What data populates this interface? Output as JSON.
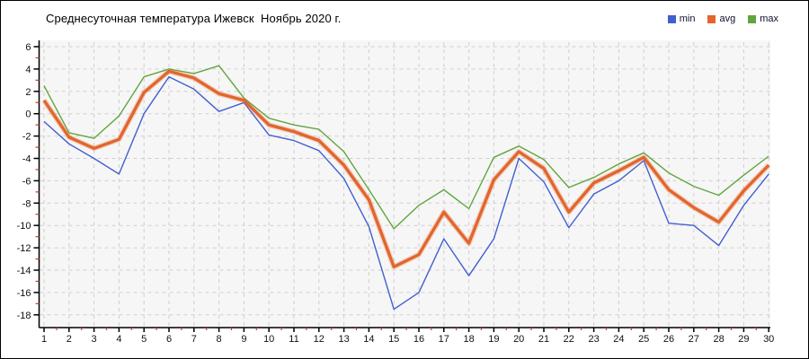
{
  "title": "Среднесуточная температура Ижевск  Ноябрь 2020 г.",
  "legend": {
    "position": "top-right",
    "items": [
      {
        "label": "min",
        "color": "#415fd0"
      },
      {
        "label": "avg",
        "color": "#e2662d"
      },
      {
        "label": "max",
        "color": "#62a53e"
      }
    ]
  },
  "axes": {
    "y_tick_labels": [
      6,
      4,
      2,
      0,
      -2,
      -4,
      -6,
      -8,
      -10,
      -12,
      -14,
      -16,
      -18
    ],
    "y_minor_ticks": [
      5,
      3,
      1,
      -1,
      -3,
      -5,
      -7,
      -9,
      -11,
      -13,
      -15,
      -17
    ],
    "x_tick_labels": [
      1,
      2,
      3,
      4,
      5,
      6,
      7,
      8,
      9,
      10,
      11,
      12,
      13,
      14,
      15,
      16,
      17,
      18,
      19,
      20,
      21,
      22,
      23,
      24,
      25,
      26,
      27,
      28,
      29,
      30
    ],
    "axis_color": "#000000",
    "minor_tick_color": "#d03a2a",
    "grid_color": "#cfcfcf",
    "plot_background": "#f6f6f6"
  },
  "chart_data": {
    "type": "line",
    "title": "Среднесуточная температура Ижевск  Ноябрь 2020 г.",
    "xlabel": "",
    "ylabel": "",
    "ylim": [
      -18,
      6
    ],
    "grid": "dashed",
    "legend_position": "top-right",
    "x": [
      1,
      2,
      3,
      4,
      5,
      6,
      7,
      8,
      9,
      10,
      11,
      12,
      13,
      14,
      15,
      16,
      17,
      18,
      19,
      20,
      21,
      22,
      23,
      24,
      25,
      26,
      27,
      28,
      29,
      30
    ],
    "series": [
      {
        "name": "min",
        "color": "#415fd0",
        "style": "thin",
        "values": [
          -0.7,
          -2.7,
          -4.0,
          -5.4,
          0.0,
          3.3,
          2.2,
          0.2,
          1.0,
          -1.9,
          -2.4,
          -3.3,
          -5.8,
          -10.1,
          -17.5,
          -16.0,
          -11.2,
          -14.5,
          -11.2,
          -4.0,
          -6.1,
          -10.2,
          -7.2,
          -6.0,
          -4.2,
          -9.8,
          -10.0,
          -11.8,
          -8.2,
          -5.4
        ]
      },
      {
        "name": "avg",
        "color": "#e2662d",
        "style": "thick",
        "values": [
          1.2,
          -2.1,
          -3.1,
          -2.3,
          1.9,
          3.8,
          3.2,
          1.8,
          1.2,
          -1.0,
          -1.6,
          -2.4,
          -4.6,
          -7.7,
          -13.7,
          -12.6,
          -8.8,
          -11.6,
          -5.9,
          -3.4,
          -4.9,
          -8.8,
          -6.2,
          -5.1,
          -3.9,
          -6.8,
          -8.4,
          -9.7,
          -6.9,
          -4.6
        ]
      },
      {
        "name": "max",
        "color": "#62a53e",
        "style": "thin",
        "values": [
          2.5,
          -1.7,
          -2.2,
          -0.2,
          3.3,
          4.0,
          3.6,
          4.3,
          1.4,
          -0.4,
          -1.0,
          -1.4,
          -3.4,
          -6.8,
          -10.3,
          -8.2,
          -6.8,
          -8.5,
          -3.9,
          -2.9,
          -4.1,
          -6.6,
          -5.7,
          -4.5,
          -3.5,
          -5.3,
          -6.5,
          -7.3,
          -5.5,
          -3.8
        ]
      }
    ]
  }
}
